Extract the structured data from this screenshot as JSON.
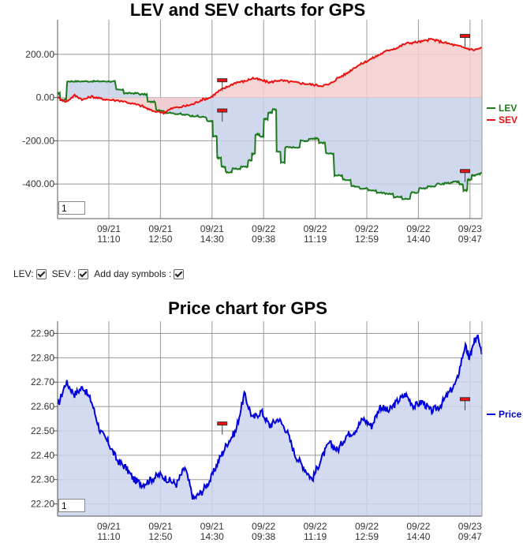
{
  "controls": {
    "lev_label": "LEV:",
    "sev_label": "SEV :",
    "day_symbols_label": "Add day symbols :"
  },
  "chart_data": [
    {
      "type": "line",
      "title": "LEV and SEV charts for GPS",
      "x_ticks": [
        {
          "date": "09/21",
          "time": "11:10"
        },
        {
          "date": "09/21",
          "time": "12:50"
        },
        {
          "date": "09/21",
          "time": "14:30"
        },
        {
          "date": "09/22",
          "time": "09:38"
        },
        {
          "date": "09/22",
          "time": "11:19"
        },
        {
          "date": "09/22",
          "time": "12:59"
        },
        {
          "date": "09/22",
          "time": "14:40"
        },
        {
          "date": "09/23",
          "time": "09:47"
        }
      ],
      "y_ticks": [
        "200.00",
        "0.00",
        "-200.00",
        "-400.00"
      ],
      "ylim": [
        -560,
        360
      ],
      "zoom_value": "1",
      "series": [
        {
          "name": "LEV",
          "color": "#1e7a1e",
          "fill": "#c8d1ea",
          "x": [
            0,
            0.01,
            0.03,
            0.05,
            0.08,
            0.1,
            0.12,
            0.15,
            0.16,
            0.18,
            0.2,
            0.22,
            0.24,
            0.26,
            0.28,
            0.3,
            0.32,
            0.34,
            0.36,
            0.37,
            0.38,
            0.39,
            0.4,
            0.42,
            0.44,
            0.455,
            0.46,
            0.47,
            0.48,
            0.49,
            0.5,
            0.51,
            0.52,
            0.53,
            0.54,
            0.56,
            0.58,
            0.6,
            0.61,
            0.62,
            0.64,
            0.66,
            0.68,
            0.7,
            0.72,
            0.74,
            0.76,
            0.78,
            0.8,
            0.82,
            0.84,
            0.86,
            0.88,
            0.9,
            0.92,
            0.94,
            0.95,
            0.96,
            0.97,
            0.98,
            0.99,
            1.0
          ],
          "y": [
            20,
            -10,
            75,
            75,
            75,
            75,
            75,
            35,
            20,
            20,
            15,
            -20,
            -60,
            -70,
            -75,
            -80,
            -85,
            -90,
            -110,
            -180,
            -280,
            -320,
            -345,
            -330,
            -320,
            -290,
            -260,
            -170,
            -180,
            -100,
            -70,
            -55,
            -250,
            -300,
            -230,
            -230,
            -200,
            -190,
            -190,
            -210,
            -260,
            -360,
            -380,
            -410,
            -420,
            -430,
            -440,
            -445,
            -460,
            -470,
            -440,
            -420,
            -410,
            -400,
            -395,
            -390,
            -400,
            -430,
            -380,
            -360,
            -355,
            -350
          ]
        },
        {
          "name": "SEV",
          "color": "#ee1111",
          "fill": "#f3cccc",
          "x": [
            0,
            0.02,
            0.04,
            0.06,
            0.08,
            0.1,
            0.12,
            0.15,
            0.18,
            0.2,
            0.22,
            0.25,
            0.27,
            0.3,
            0.32,
            0.34,
            0.36,
            0.38,
            0.4,
            0.42,
            0.44,
            0.46,
            0.48,
            0.5,
            0.52,
            0.54,
            0.56,
            0.58,
            0.6,
            0.62,
            0.64,
            0.66,
            0.68,
            0.7,
            0.72,
            0.74,
            0.76,
            0.78,
            0.8,
            0.82,
            0.84,
            0.86,
            0.88,
            0.9,
            0.92,
            0.94,
            0.96,
            0.98,
            1.0
          ],
          "y": [
            0,
            -20,
            10,
            -10,
            5,
            -5,
            -10,
            -15,
            -30,
            -40,
            -60,
            -70,
            -50,
            -40,
            -30,
            -10,
            0,
            30,
            50,
            70,
            75,
            90,
            80,
            70,
            80,
            75,
            70,
            65,
            60,
            55,
            60,
            90,
            110,
            140,
            160,
            180,
            200,
            220,
            230,
            250,
            255,
            260,
            270,
            260,
            250,
            240,
            230,
            220,
            230
          ]
        }
      ],
      "markers": [
        {
          "x": 0.388,
          "y": 80,
          "type": "day-symbol"
        },
        {
          "x": 0.388,
          "y": -60,
          "type": "day-symbol"
        },
        {
          "x": 0.96,
          "y": 285,
          "type": "day-symbol"
        },
        {
          "x": 0.96,
          "y": -340,
          "type": "day-symbol"
        }
      ]
    },
    {
      "type": "area",
      "title": "Price chart for GPS",
      "x_ticks": [
        {
          "date": "09/21",
          "time": "11:10"
        },
        {
          "date": "09/21",
          "time": "12:50"
        },
        {
          "date": "09/21",
          "time": "14:30"
        },
        {
          "date": "09/22",
          "time": "09:38"
        },
        {
          "date": "09/22",
          "time": "11:19"
        },
        {
          "date": "09/22",
          "time": "12:59"
        },
        {
          "date": "09/22",
          "time": "14:40"
        },
        {
          "date": "09/23",
          "time": "09:47"
        }
      ],
      "y_ticks": [
        "22.90",
        "22.80",
        "22.70",
        "22.60",
        "22.50",
        "22.40",
        "22.30",
        "22.20"
      ],
      "ylim": [
        22.15,
        22.95
      ],
      "zoom_value": "1",
      "series": [
        {
          "name": "Price",
          "color": "#0000dd",
          "fill": "#ccd3ec",
          "x": [
            0,
            0.02,
            0.04,
            0.06,
            0.08,
            0.1,
            0.12,
            0.14,
            0.16,
            0.18,
            0.2,
            0.22,
            0.24,
            0.26,
            0.28,
            0.3,
            0.32,
            0.34,
            0.36,
            0.38,
            0.4,
            0.42,
            0.44,
            0.46,
            0.48,
            0.5,
            0.52,
            0.54,
            0.56,
            0.58,
            0.6,
            0.62,
            0.64,
            0.66,
            0.68,
            0.7,
            0.72,
            0.74,
            0.76,
            0.78,
            0.8,
            0.82,
            0.84,
            0.86,
            0.88,
            0.9,
            0.92,
            0.94,
            0.96,
            0.97,
            0.98,
            0.99,
            1.0
          ],
          "y": [
            22.6,
            22.7,
            22.65,
            22.68,
            22.62,
            22.5,
            22.45,
            22.38,
            22.35,
            22.3,
            22.28,
            22.3,
            22.32,
            22.3,
            22.28,
            22.35,
            22.22,
            22.25,
            22.3,
            22.38,
            22.45,
            22.5,
            22.65,
            22.55,
            22.58,
            22.52,
            22.55,
            22.5,
            22.4,
            22.35,
            22.3,
            22.38,
            22.45,
            22.42,
            22.48,
            22.5,
            22.55,
            22.52,
            22.6,
            22.58,
            22.62,
            22.65,
            22.6,
            22.62,
            22.58,
            22.6,
            22.65,
            22.7,
            22.85,
            22.8,
            22.85,
            22.9,
            22.82
          ]
        }
      ],
      "markers": [
        {
          "x": 0.388,
          "y": 22.53,
          "type": "day-symbol"
        },
        {
          "x": 0.96,
          "y": 22.63,
          "type": "day-symbol"
        }
      ]
    }
  ]
}
